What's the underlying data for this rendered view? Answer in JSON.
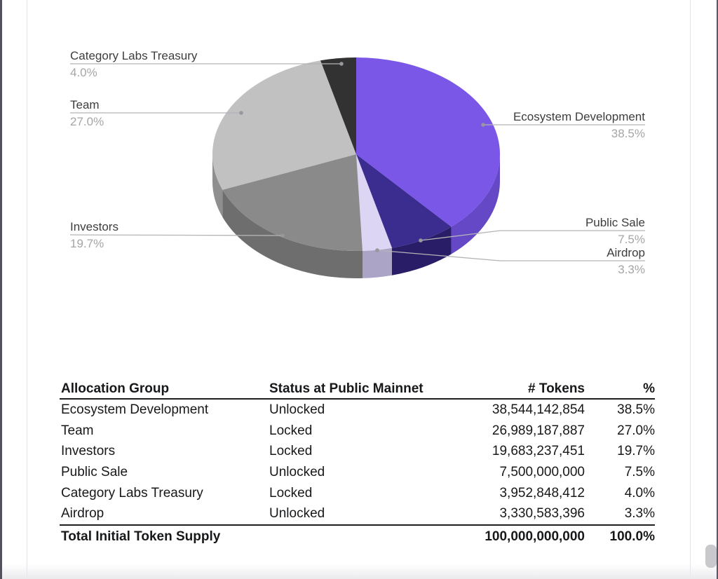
{
  "chart_data": [
    {
      "type": "pie",
      "style": "3d",
      "title": "",
      "labels": [
        "Ecosystem Development",
        "Public Sale",
        "Airdrop",
        "Investors",
        "Team",
        "Category Labs Treasury"
      ],
      "values": [
        38.5,
        7.5,
        3.3,
        19.7,
        27.0,
        4.0
      ],
      "percent_labels": [
        "38.5%",
        "7.5%",
        "3.3%",
        "19.7%",
        "27.0%",
        "4.0%"
      ],
      "colors": [
        "#7B57E8",
        "#3B2D90",
        "#DCD5F4",
        "#8A8A8A",
        "#C1C1C2",
        "#323232"
      ],
      "side_colors": [
        "#6448C6",
        "#281D66",
        "#ABA4C6",
        "#6E6E6E",
        "#8F8F8F",
        "#262626"
      ],
      "start_angle_deg": 0,
      "direction": "clockwise",
      "legend": "none",
      "label_style": {
        "name_color": "#3d3d3f",
        "pct_color": "#a5a5a7",
        "leader_line_color": "#b4b4b8"
      }
    },
    {
      "type": "table",
      "columns": [
        "Allocation Group",
        "Status at Public Mainnet",
        "# Tokens",
        "%"
      ],
      "rows": [
        [
          "Ecosystem Development",
          "Unlocked",
          "38,544,142,854",
          "38.5%"
        ],
        [
          "Team",
          "Locked",
          "26,989,187,887",
          "27.0%"
        ],
        [
          "Investors",
          "Locked",
          "19,683,237,451",
          "19.7%"
        ],
        [
          "Public Sale",
          "Unlocked",
          "7,500,000,000",
          "7.5%"
        ],
        [
          "Category Labs Treasury",
          "Locked",
          "3,952,848,412",
          "4.0%"
        ],
        [
          "Airdrop",
          "Unlocked",
          "3,330,583,396",
          "3.3%"
        ]
      ],
      "total_row": [
        "Total Initial Token Supply",
        "",
        "100,000,000,000",
        "100.0%"
      ]
    }
  ]
}
